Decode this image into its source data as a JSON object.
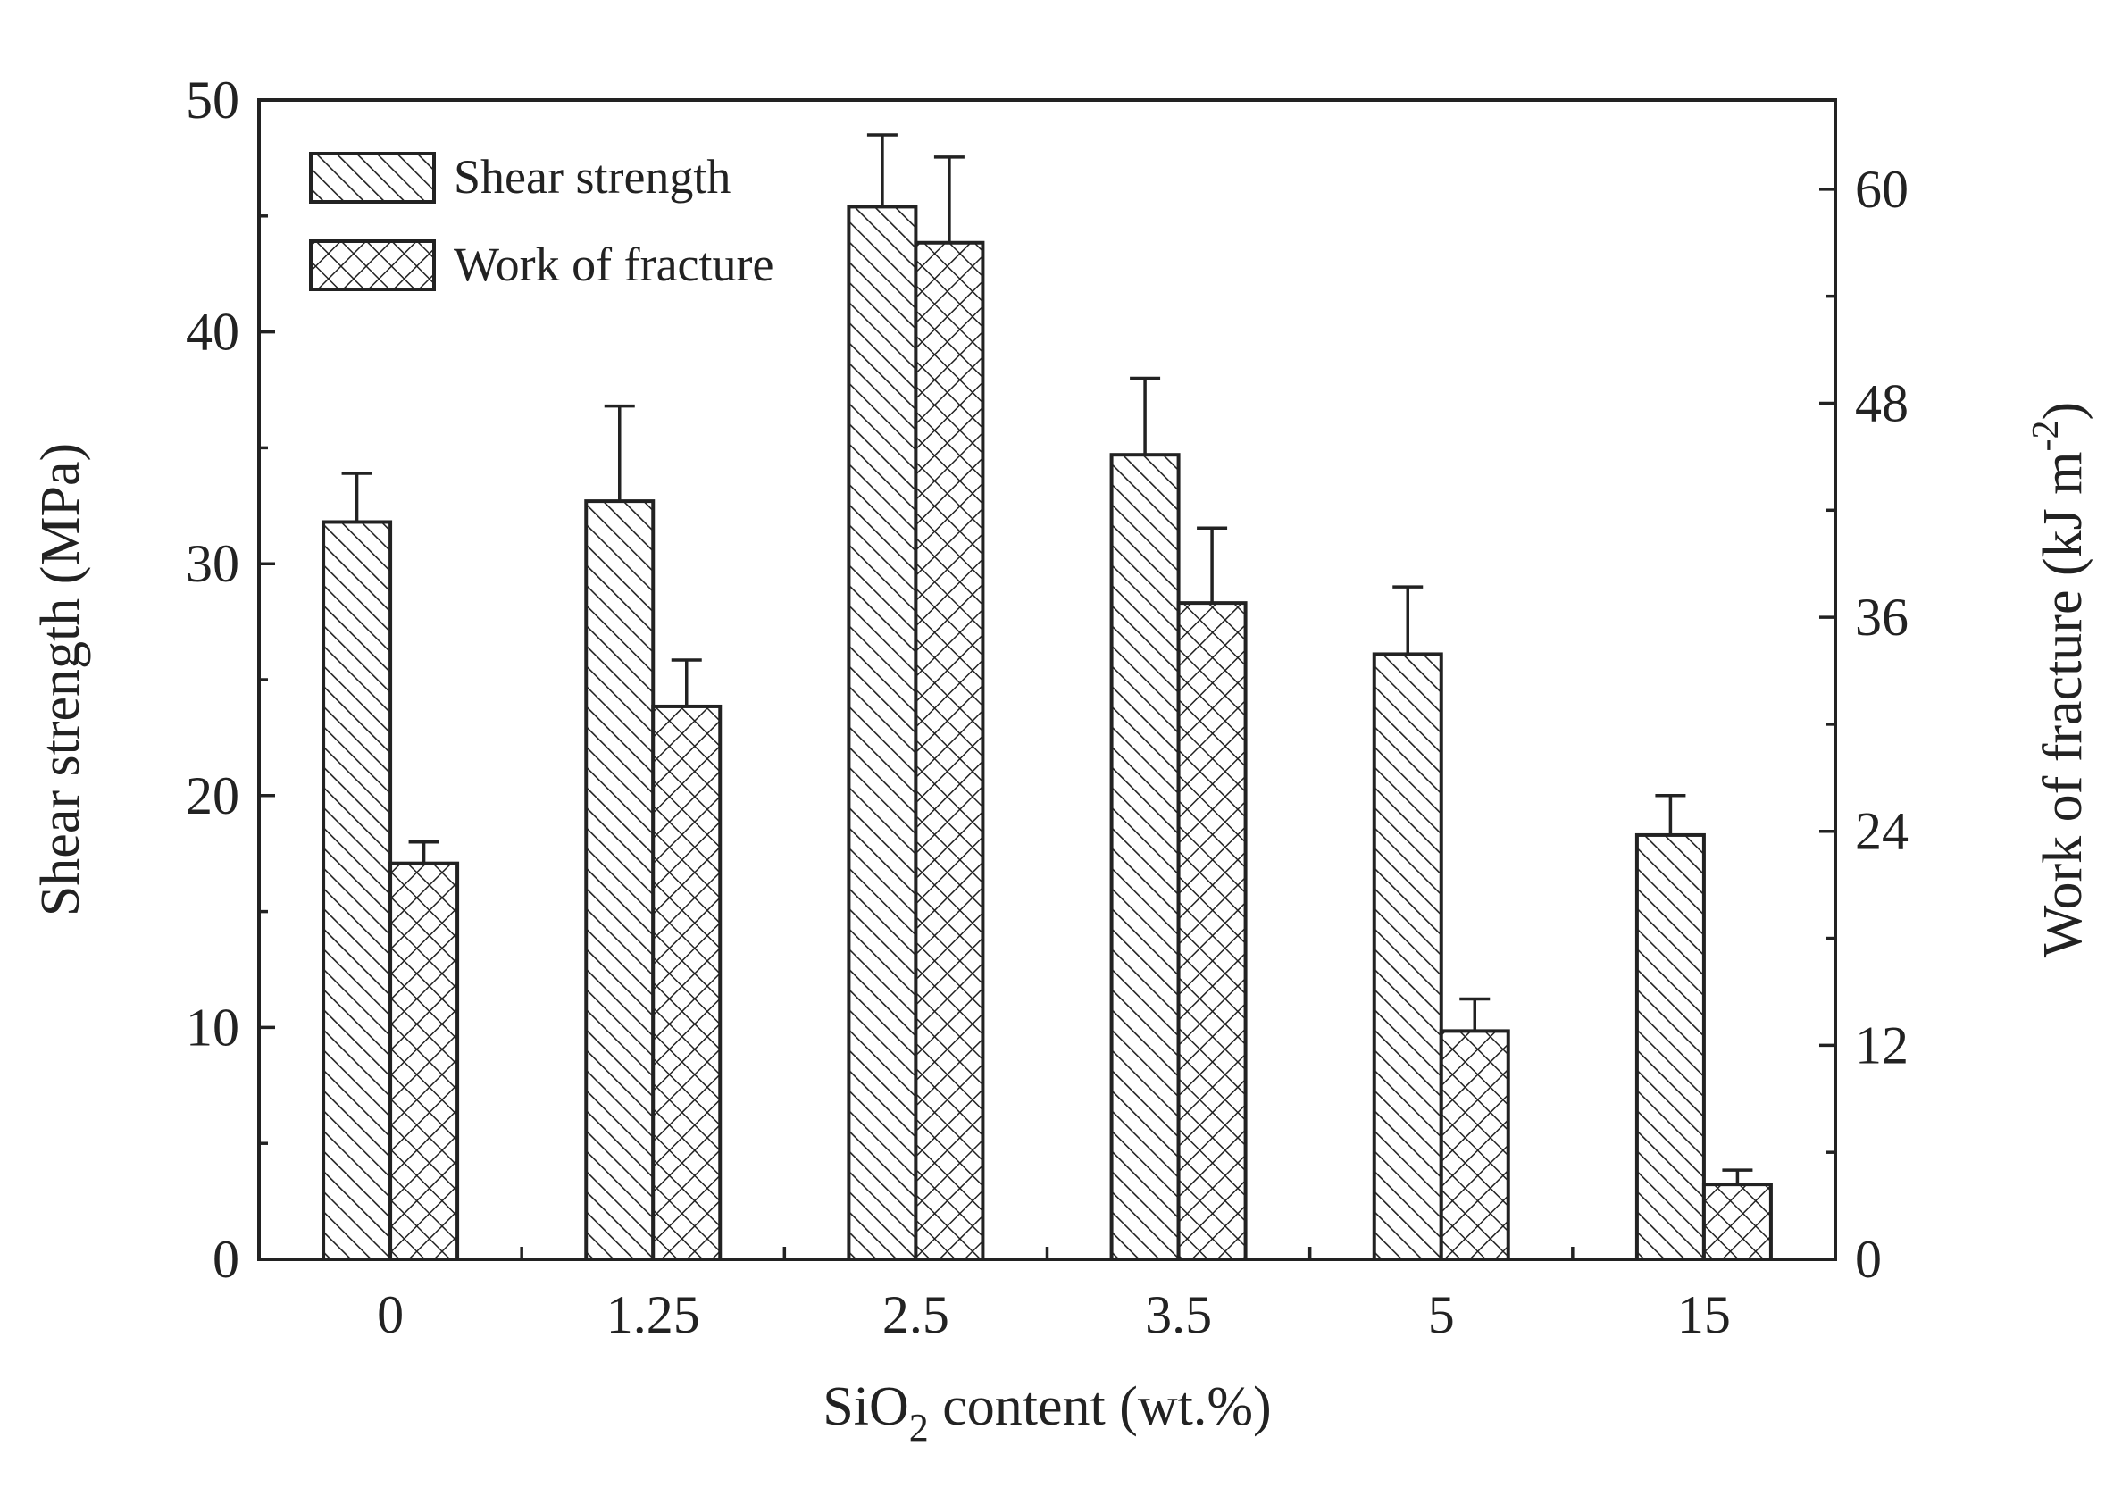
{
  "chart_data": {
    "type": "bar",
    "categories": [
      "0",
      "1.25",
      "2.5",
      "3.5",
      "5",
      "15"
    ],
    "xlabel": {
      "pre": "SiO",
      "sub": "2",
      "post": " content (wt.%)"
    },
    "y_left": {
      "label": "Shear strength (MPa)",
      "range": [
        0,
        50
      ],
      "ticks": [
        0,
        10,
        20,
        30,
        40,
        50
      ],
      "minor_step": 5
    },
    "y_right": {
      "label": {
        "pre": "Work of fracture (kJ m",
        "sup": "-2",
        "post": ")"
      },
      "range": [
        0,
        65
      ],
      "ticks": [
        0,
        12,
        24,
        36,
        48,
        60
      ],
      "minor_step": 6
    },
    "series": [
      {
        "name": "Shear strength",
        "axis": "left",
        "pattern": "diagonal-hatch",
        "values": [
          31.8,
          32.7,
          45.4,
          34.7,
          26.1,
          18.3
        ],
        "errors": [
          2.1,
          4.1,
          3.1,
          3.3,
          2.9,
          1.7
        ]
      },
      {
        "name": "Work of fracture",
        "axis": "right",
        "pattern": "cross-hatch",
        "values": [
          22.2,
          31.0,
          57.0,
          36.8,
          12.8,
          4.2
        ],
        "errors": [
          1.2,
          2.6,
          4.8,
          4.2,
          1.8,
          0.8
        ]
      }
    ],
    "legend": {
      "position": "top-left",
      "entries": [
        "Shear strength",
        "Work of fracture"
      ]
    },
    "grid": false
  }
}
